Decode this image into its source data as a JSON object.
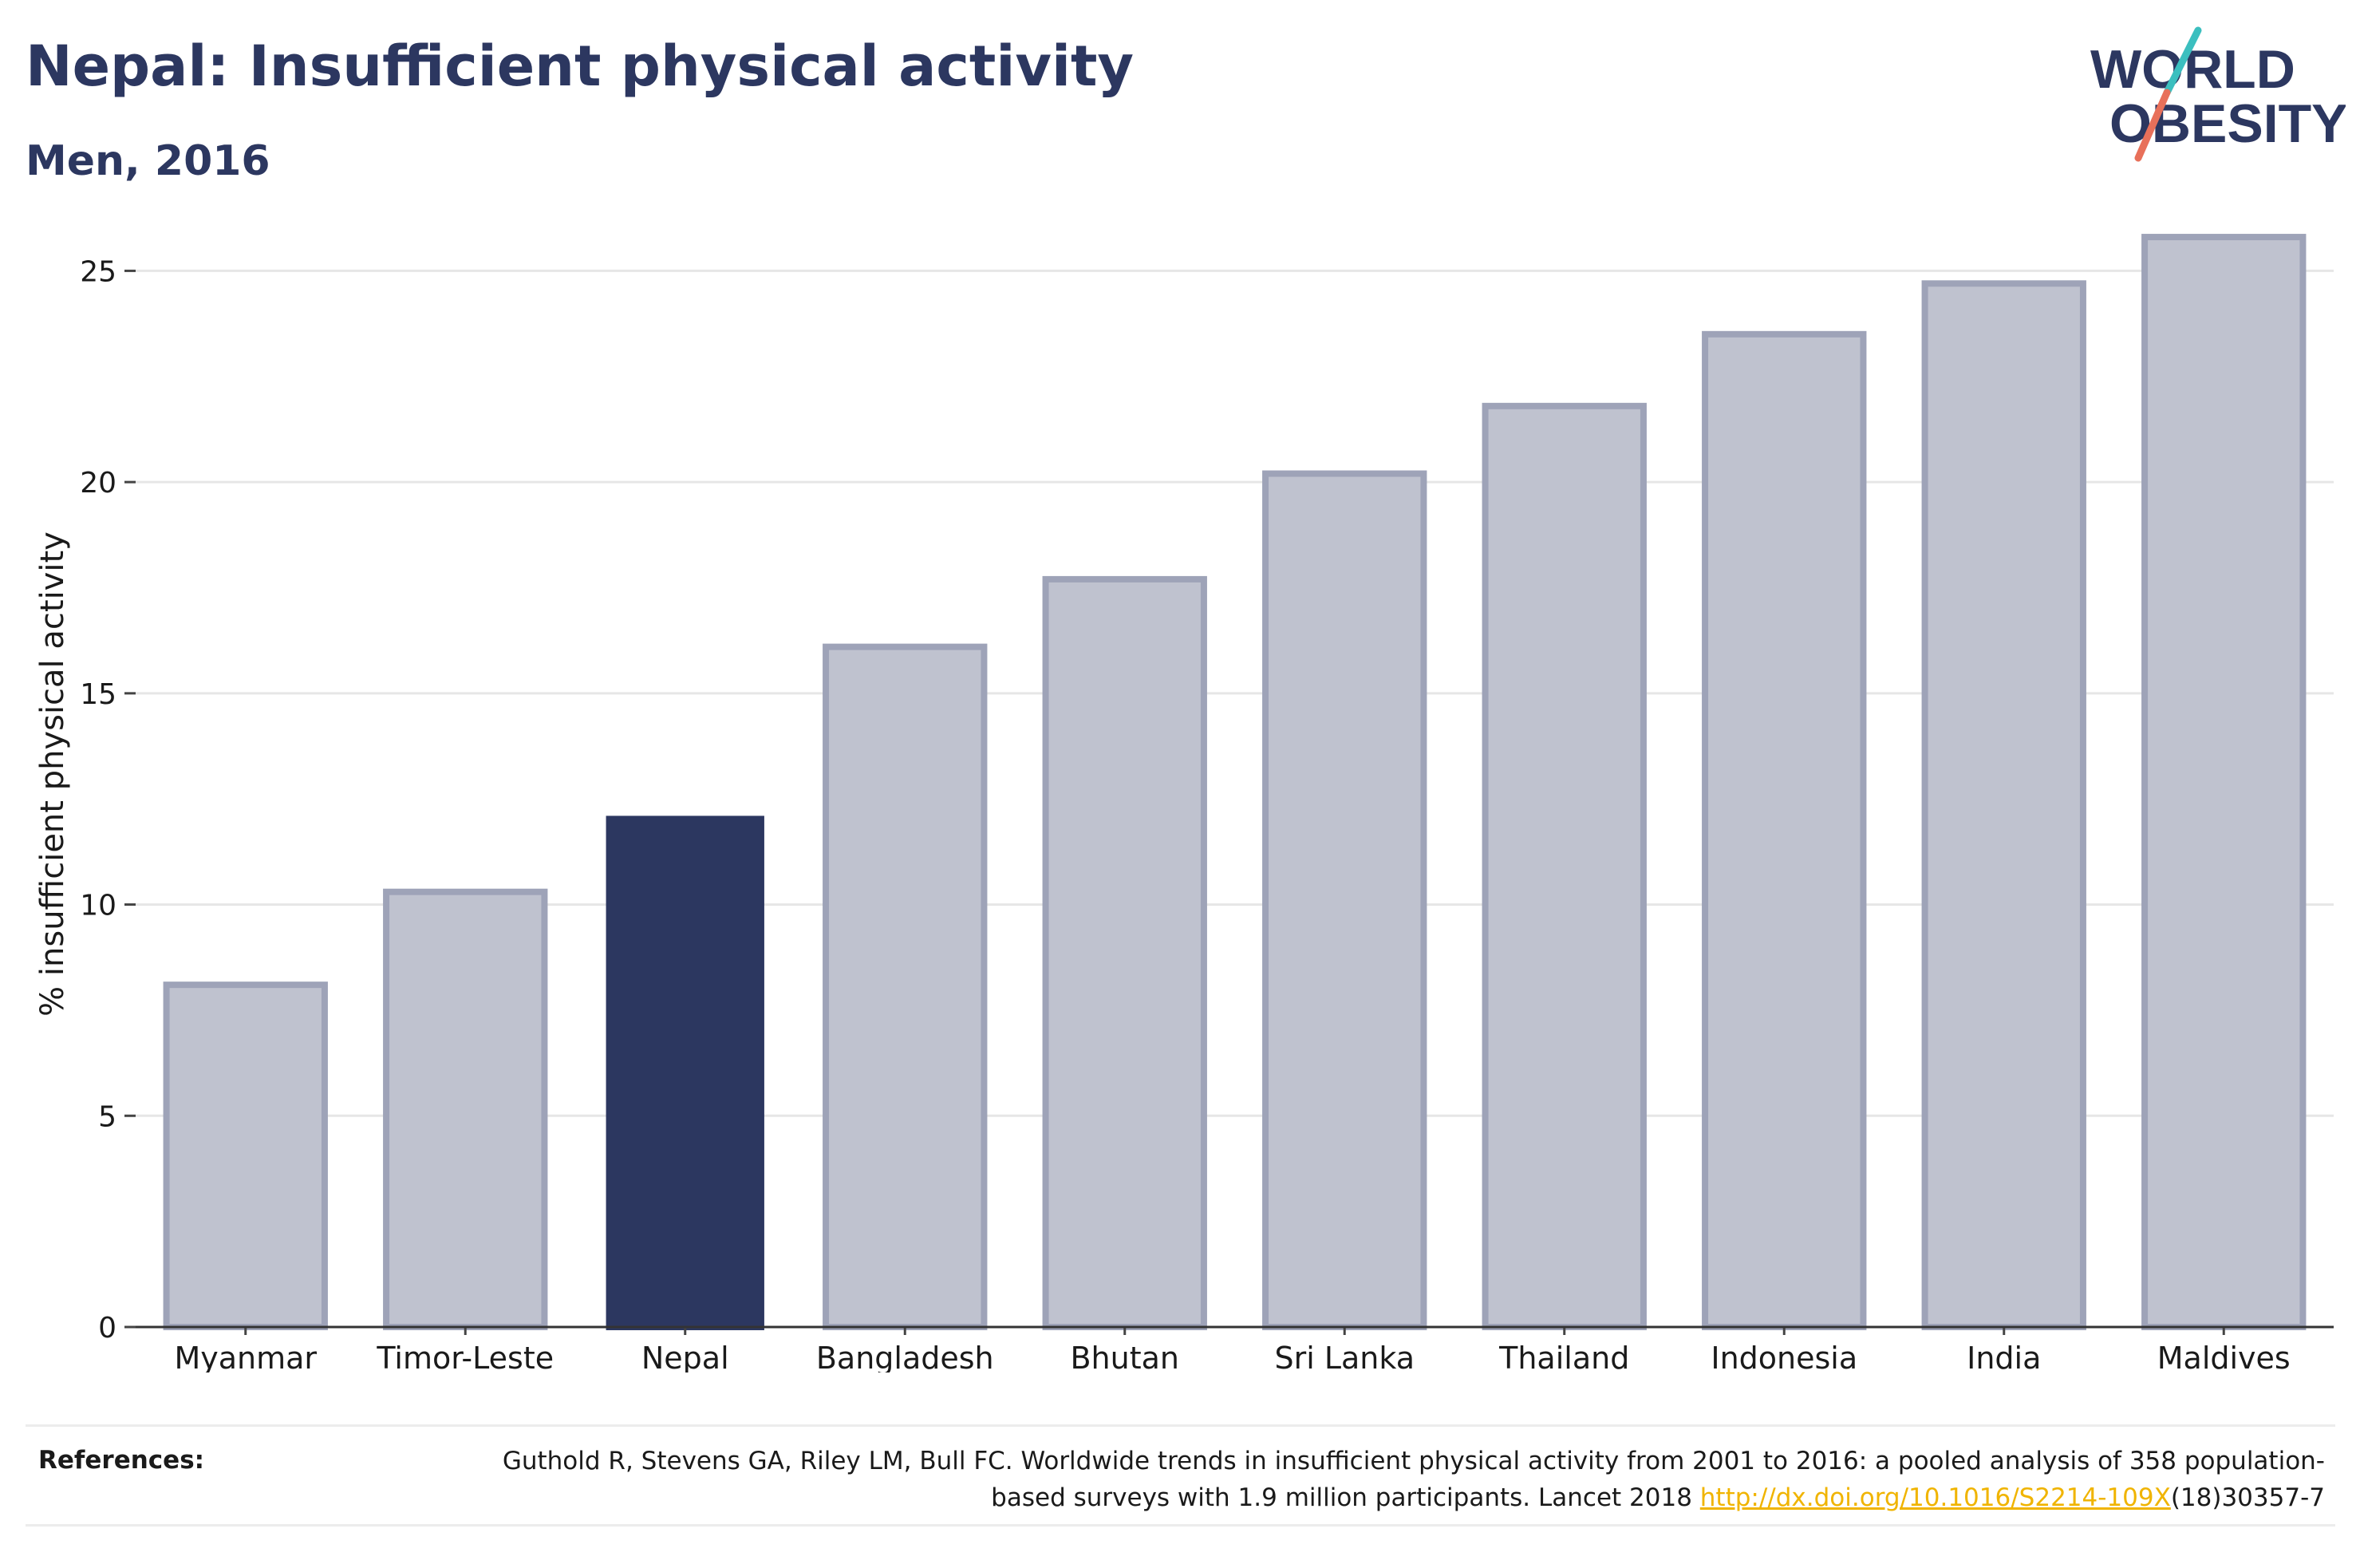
{
  "header": {
    "title": "Nepal: Insufficient physical activity",
    "subtitle": "Men, 2016"
  },
  "logo": {
    "line1": "WORLD",
    "line2": "OBESITY",
    "text_color": "#2c3760",
    "slash_colors": [
      "#3bbfbf",
      "#e8705a"
    ]
  },
  "chart_data": {
    "type": "bar",
    "title": "Nepal: Insufficient physical activity",
    "subtitle": "Men, 2016",
    "ylabel": "% insufficient physical activity",
    "xlabel": "",
    "categories": [
      "Myanmar",
      "Timor-Leste",
      "Nepal",
      "Bangladesh",
      "Bhutan",
      "Sri Lanka",
      "Thailand",
      "Indonesia",
      "India",
      "Maldives"
    ],
    "values": [
      8.1,
      10.3,
      12.1,
      16.1,
      17.7,
      20.2,
      21.8,
      23.5,
      24.7,
      25.8
    ],
    "highlight": "Nepal",
    "ylim": [
      0,
      26.5
    ],
    "yticks": [
      0,
      5,
      10,
      15,
      20,
      25
    ],
    "grid": true,
    "colors": {
      "highlight": "#2c3760",
      "bar_fill": "#bfc2cf",
      "bar_stroke": "#9ea3b8"
    }
  },
  "references": {
    "label": "References:",
    "text_before": "Guthold R, Stevens GA, Riley LM, Bull FC. Worldwide trends in insufficient physical activity from 2001 to 2016: a pooled analysis of 358 population-based surveys with 1.9 million participants. Lancet 2018 ",
    "link": "http://dx.doi.org/10.1016/S2214-109X",
    "text_after": "(18)30357-7"
  }
}
